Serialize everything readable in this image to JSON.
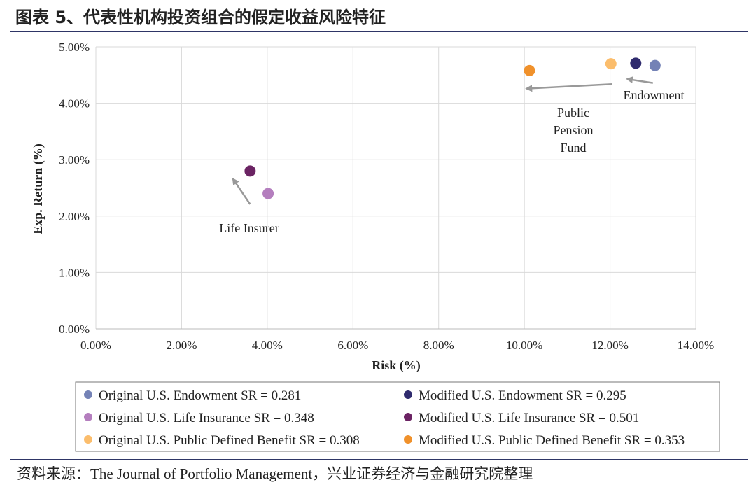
{
  "header": {
    "title": "图表 5、代表性机构投资组合的假定收益风险特征"
  },
  "footer": {
    "source": "资料来源：The Journal of Portfolio Management，兴业证券经济与金融研究院整理"
  },
  "colors": {
    "rule": "#2e3566",
    "grid": "#d9d9d9",
    "arrow": "#999999"
  },
  "chart_data": {
    "type": "scatter",
    "title": "",
    "xlabel": "Risk (%)",
    "ylabel": "Exp. Return (%)",
    "xlim": [
      0,
      14
    ],
    "ylim": [
      0,
      5
    ],
    "xticks": [
      "0.00%",
      "2.00%",
      "4.00%",
      "6.00%",
      "8.00%",
      "10.00%",
      "12.00%",
      "14.00%"
    ],
    "yticks": [
      "0.00%",
      "1.00%",
      "2.00%",
      "3.00%",
      "4.00%",
      "5.00%"
    ],
    "grid": true,
    "legend_position": "bottom",
    "series": [
      {
        "name": "Original U.S. Endowment SR = 0.281",
        "color": "#7482b6",
        "x": 13.05,
        "y": 4.67
      },
      {
        "name": "Modified U.S. Endowment SR = 0.295",
        "color": "#2f2b6e",
        "x": 12.6,
        "y": 4.71
      },
      {
        "name": "Original U.S. Life Insurance SR = 0.348",
        "color": "#b47ebe",
        "x": 4.02,
        "y": 2.4
      },
      {
        "name": "Modified U.S. Life Insurance SR = 0.501",
        "color": "#6b2363",
        "x": 3.6,
        "y": 2.8
      },
      {
        "name": "Original U.S. Public Defined Benefit SR = 0.308",
        "color": "#fbbd6c",
        "x": 12.02,
        "y": 4.7
      },
      {
        "name": "Modified U.S. Public Defined Benefit SR = 0.353",
        "color": "#f0912b",
        "x": 10.12,
        "y": 4.58
      }
    ],
    "annotations": [
      {
        "lines": [
          "Endowment"
        ],
        "arrow_from": [
          13.0,
          4.36
        ],
        "arrow_to": [
          12.4,
          4.43
        ]
      },
      {
        "lines": [
          "Public",
          "Pension",
          "Fund"
        ],
        "arrow_from": [
          12.05,
          4.34
        ],
        "arrow_to": [
          10.05,
          4.26
        ]
      },
      {
        "lines": [
          "Life Insurer"
        ],
        "arrow_from": [
          3.6,
          2.21
        ],
        "arrow_to": [
          3.2,
          2.66
        ]
      }
    ]
  }
}
